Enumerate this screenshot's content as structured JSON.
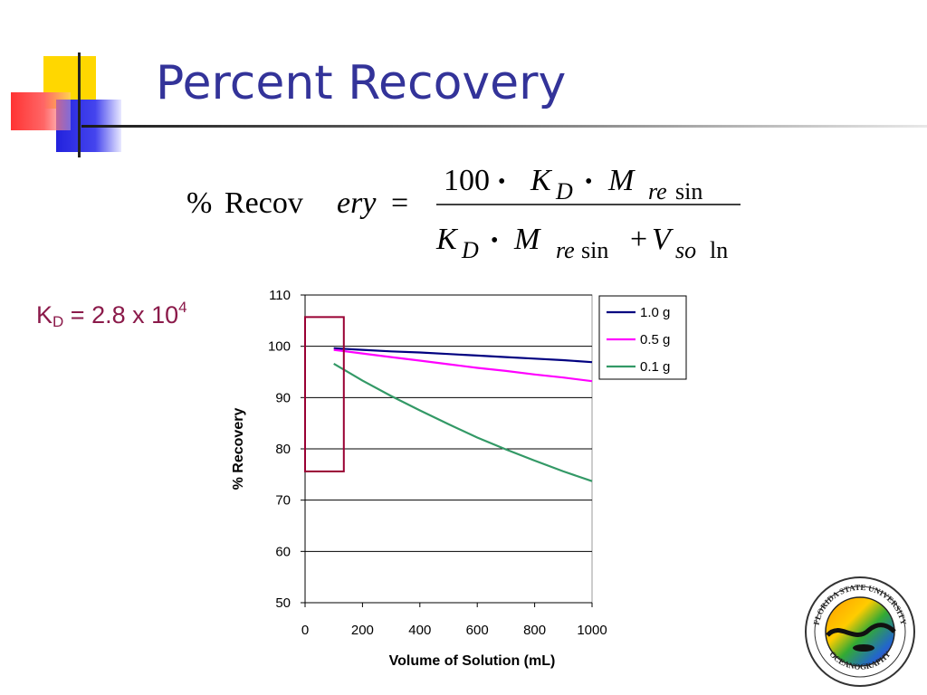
{
  "slide": {
    "title": "Percent Recovery"
  },
  "formula": {
    "lhs_percent": "%",
    "lhs_word_upright": "Recov",
    "lhs_word_italic": "ery",
    "equals": "=",
    "numerator_coeff": "100",
    "dot": "•",
    "K": "K",
    "D": "D",
    "M": "M",
    "re": "re",
    "sin": "sin",
    "plus": "+",
    "V": "V",
    "so": "so",
    "ln": "ln"
  },
  "kd": {
    "prefix": "K",
    "sub": "D",
    "middle": " = 2.8 x 10",
    "sup": "4"
  },
  "chart_data": {
    "type": "line",
    "title": "",
    "xlabel": "Volume of Solution (mL)",
    "ylabel": "% Recovery",
    "xlim": [
      0,
      1000
    ],
    "ylim": [
      50,
      110
    ],
    "xticks": [
      0,
      200,
      400,
      600,
      800,
      1000
    ],
    "yticks": [
      50,
      60,
      70,
      80,
      90,
      100,
      110
    ],
    "grid": "horizontal",
    "legend_position": "top-right",
    "series": [
      {
        "name": "1.0 g",
        "color": "#000080",
        "x": [
          100,
          200,
          300,
          400,
          500,
          600,
          700,
          800,
          900,
          1000
        ],
        "y": [
          99.6,
          99.3,
          99.0,
          98.8,
          98.5,
          98.2,
          97.9,
          97.6,
          97.3,
          96.9
        ]
      },
      {
        "name": "0.5 g",
        "color": "#ff00ff",
        "x": [
          100,
          200,
          300,
          400,
          500,
          600,
          700,
          800,
          900,
          1000
        ],
        "y": [
          99.3,
          98.6,
          97.9,
          97.2,
          96.5,
          95.8,
          95.2,
          94.5,
          93.9,
          93.2
        ]
      },
      {
        "name": "0.1 g",
        "color": "#339966",
        "x": [
          100,
          200,
          300,
          400,
          500,
          600,
          700,
          800,
          900,
          1000
        ],
        "y": [
          96.6,
          93.3,
          90.3,
          87.5,
          84.8,
          82.2,
          79.9,
          77.7,
          75.6,
          73.7
        ]
      }
    ],
    "highlight_box": {
      "color": "#990033",
      "x_range": [
        0,
        135
      ],
      "y_range": [
        75.6,
        105.7
      ]
    }
  }
}
